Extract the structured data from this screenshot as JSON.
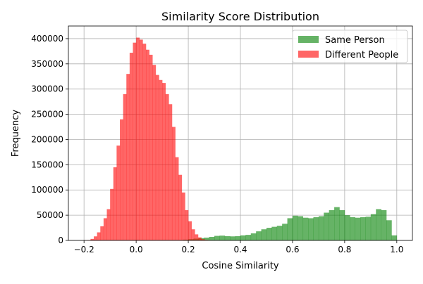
{
  "chart_data": {
    "type": "bar",
    "title": "Similarity Score Distribution",
    "xlabel": "Cosine Similarity",
    "ylabel": "Frequency",
    "xlim": [
      -0.26,
      1.06
    ],
    "ylim": [
      0,
      425000
    ],
    "x_ticks": [
      -0.2,
      0.0,
      0.2,
      0.4,
      0.6,
      0.8,
      1.0
    ],
    "x_tick_labels": [
      "−0.2",
      "0.0",
      "0.2",
      "0.4",
      "0.6",
      "0.8",
      "1.0"
    ],
    "y_ticks": [
      0,
      50000,
      100000,
      150000,
      200000,
      250000,
      300000,
      350000,
      400000
    ],
    "y_tick_labels": [
      "0",
      "50000",
      "100000",
      "150000",
      "200000",
      "250000",
      "300000",
      "350000",
      "400000"
    ],
    "grid": true,
    "legend_position": "top-right",
    "series": [
      {
        "name": "Same Person",
        "color": "#008000",
        "alpha": 0.6,
        "bin_width": 0.02,
        "bin_starts": [
          0.18,
          0.2,
          0.22,
          0.24,
          0.26,
          0.28,
          0.3,
          0.32,
          0.34,
          0.36,
          0.38,
          0.4,
          0.42,
          0.44,
          0.46,
          0.48,
          0.5,
          0.52,
          0.54,
          0.56,
          0.58,
          0.6,
          0.62,
          0.64,
          0.66,
          0.68,
          0.7,
          0.72,
          0.74,
          0.76,
          0.78,
          0.8,
          0.82,
          0.84,
          0.86,
          0.88,
          0.9,
          0.92,
          0.94,
          0.96,
          0.98
        ],
        "values": [
          1500,
          2500,
          3500,
          4500,
          5500,
          7000,
          9000,
          9500,
          8500,
          8000,
          8500,
          10000,
          11000,
          14000,
          18000,
          22000,
          25000,
          27000,
          29000,
          33000,
          44000,
          49000,
          48000,
          45000,
          44000,
          46000,
          48000,
          55000,
          60000,
          66000,
          60000,
          50000,
          46000,
          45000,
          46000,
          47000,
          52000,
          62000,
          60000,
          40000,
          10000
        ]
      },
      {
        "name": "Different People",
        "color": "#ff0000",
        "alpha": 0.6,
        "bin_width": 0.0125,
        "bin_starts": [
          -0.2,
          -0.1875,
          -0.175,
          -0.1625,
          -0.15,
          -0.1375,
          -0.125,
          -0.1125,
          -0.1,
          -0.0875,
          -0.075,
          -0.0625,
          -0.05,
          -0.0375,
          -0.025,
          -0.0125,
          0.0,
          0.0125,
          0.025,
          0.0375,
          0.05,
          0.0625,
          0.075,
          0.0875,
          0.1,
          0.1125,
          0.125,
          0.1375,
          0.15,
          0.1625,
          0.175,
          0.1875,
          0.2,
          0.2125,
          0.225,
          0.2375,
          0.25,
          0.2625,
          0.275,
          0.2875,
          0.3
        ],
        "values": [
          200,
          800,
          3000,
          8000,
          16000,
          28000,
          44000,
          62000,
          102000,
          145000,
          188000,
          240000,
          290000,
          330000,
          372000,
          392000,
          402000,
          398000,
          390000,
          378000,
          368000,
          348000,
          328000,
          318000,
          312000,
          290000,
          270000,
          225000,
          165000,
          130000,
          95000,
          60000,
          38000,
          22000,
          12000,
          6000,
          2500,
          1000,
          400,
          150,
          50
        ]
      }
    ]
  }
}
